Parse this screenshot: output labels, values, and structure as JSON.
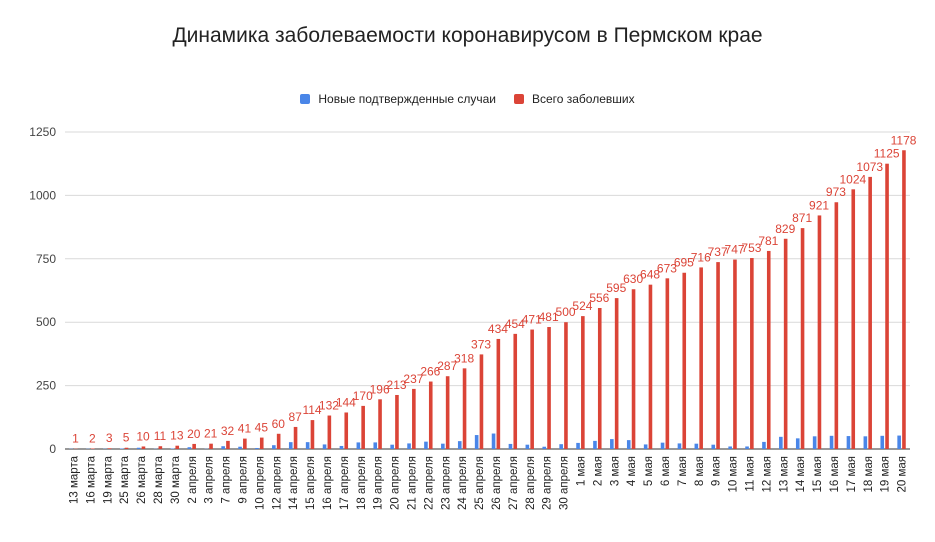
{
  "chart_data": {
    "type": "bar",
    "title": "Динамика заболеваемости коронавирусом в Пермском крае",
    "xlabel": "",
    "ylabel": "",
    "ylim": [
      0,
      1250
    ],
    "yticks": [
      0,
      250,
      500,
      750,
      1000,
      1250
    ],
    "grid": true,
    "legend_position": "top",
    "categories": [
      "13 марта",
      "16 марта",
      "19 марта",
      "25 марта",
      "26 марта",
      "28 марта",
      "30 марта",
      "2 апреля",
      "3 апреля",
      "7 апреля",
      "9 апреля",
      "10 апреля",
      "12 апреля",
      "14 апреля",
      "15 апреля",
      "16 апреля",
      "17 апреля",
      "18 апреля",
      "19 апреля",
      "20 апреля",
      "21 апреля",
      "22 апреля",
      "23 апреля",
      "24 апреля",
      "25 апреля",
      "26 апреля",
      "27 апреля",
      "28 апреля",
      "29 апреля",
      "30 апреля",
      "1 мая",
      "2 мая",
      "3 мая",
      "4 мая",
      "5 мая",
      "6 мая",
      "7 мая",
      "8 мая",
      "9 мая",
      "10 мая",
      "11 мая",
      "12 мая",
      "13 мая",
      "14 мая",
      "15 мая",
      "16 мая",
      "17 мая",
      "18 мая",
      "19 мая",
      "20 мая"
    ],
    "series": [
      {
        "name": "Новые подтвержденные случаи",
        "color": "#4a86e8",
        "values": [
          1,
          1,
          1,
          2,
          5,
          1,
          2,
          7,
          1,
          11,
          9,
          4,
          15,
          27,
          27,
          18,
          12,
          26,
          26,
          17,
          22,
          29,
          21,
          31,
          55,
          61,
          20,
          17,
          9,
          19,
          24,
          32,
          39,
          35,
          18,
          25,
          22,
          21,
          17,
          10,
          10,
          28,
          48,
          42,
          50,
          52,
          51,
          50,
          52,
          53
        ]
      },
      {
        "name": "Всего заболевших",
        "color": "#db4437",
        "values": [
          1,
          2,
          3,
          5,
          10,
          11,
          13,
          20,
          21,
          32,
          41,
          45,
          60,
          87,
          114,
          132,
          144,
          170,
          196,
          213,
          237,
          266,
          287,
          318,
          373,
          434,
          454,
          471,
          481,
          500,
          524,
          556,
          595,
          630,
          648,
          673,
          695,
          716,
          737,
          747,
          753,
          781,
          829,
          871,
          921,
          973,
          1024,
          1073,
          1125,
          1178
        ],
        "data_labels": [
          "1",
          "2",
          "3",
          "5",
          "10",
          "11",
          "13",
          "20",
          "21",
          "32",
          "41",
          "45",
          "60",
          "87",
          "114",
          "132",
          "144",
          "170",
          "196",
          "213",
          "237",
          "266",
          "287",
          "318",
          "373",
          "434",
          "454",
          "471",
          "481",
          "500",
          "524",
          "556",
          "595",
          "630",
          "648",
          "673",
          "695",
          "716",
          "737",
          "747",
          "753",
          "781",
          "829",
          "871",
          "921",
          "973",
          "1024",
          "1073",
          "1125",
          "1178"
        ]
      }
    ]
  }
}
